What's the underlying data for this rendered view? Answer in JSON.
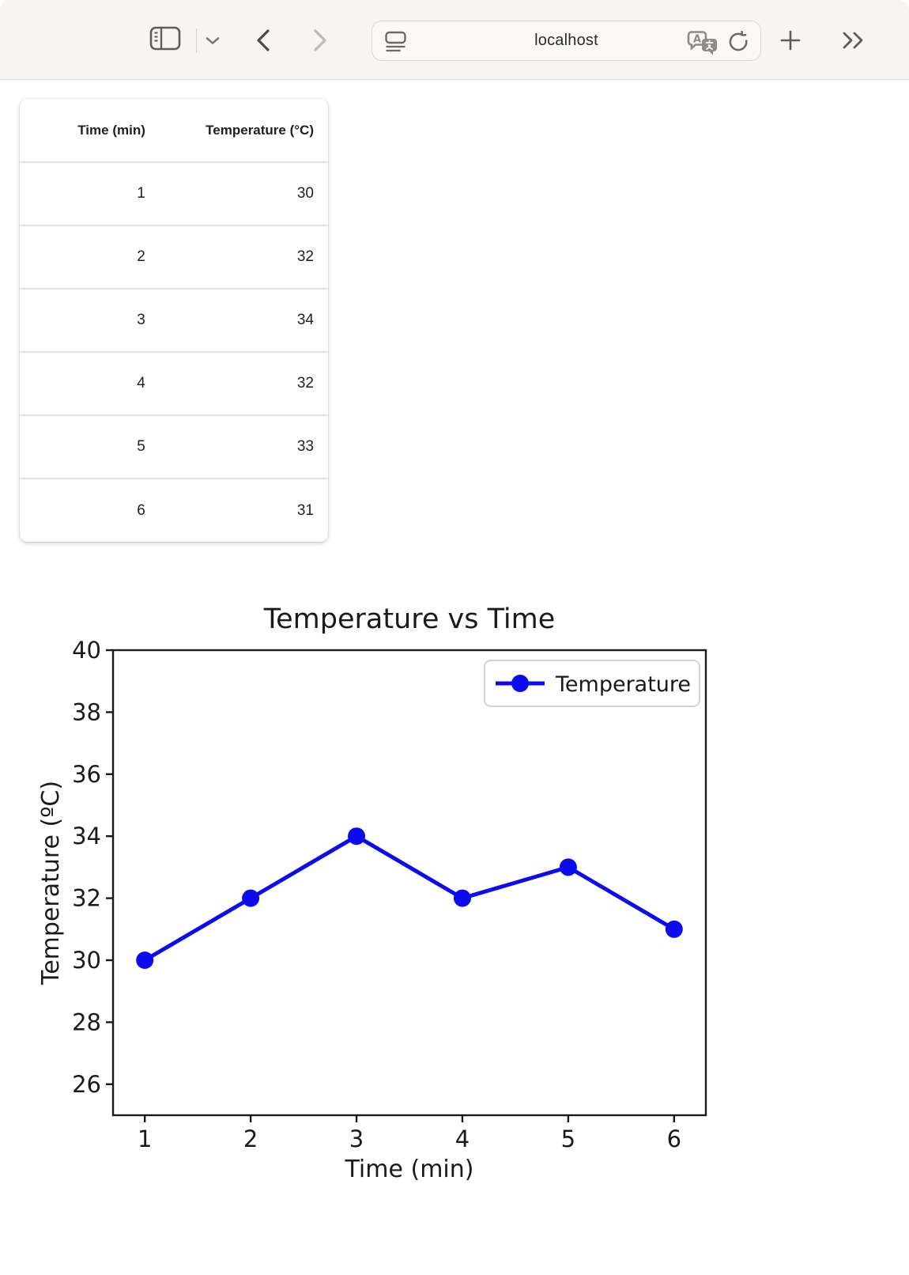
{
  "browser": {
    "url": "localhost",
    "window_buttons": {
      "close_color": "#ED6A5E",
      "minimize_color": "#F5BF4F",
      "zoom_color": "#61C554"
    },
    "toolbar": {
      "icons": [
        "sidebar-toggle",
        "tab-group-chevron",
        "back",
        "forward",
        "page-format",
        "translate",
        "reload",
        "new-tab-plus",
        "overflow-double-chevron"
      ],
      "background_color": "#f6f5f2"
    }
  },
  "table": {
    "headers": [
      "Time (min)",
      "Temperature (°C)"
    ],
    "rows": [
      [
        "1",
        "30"
      ],
      [
        "2",
        "32"
      ],
      [
        "3",
        "34"
      ],
      [
        "4",
        "32"
      ],
      [
        "5",
        "33"
      ],
      [
        "6",
        "31"
      ]
    ]
  },
  "chart_data": {
    "type": "line",
    "title": "Temperature vs Time",
    "xlabel": "Time (min)",
    "ylabel": "Temperature (ºC)",
    "x": [
      1,
      2,
      3,
      4,
      5,
      6
    ],
    "series": [
      {
        "name": "Temperature",
        "values": [
          30,
          32,
          34,
          32,
          33,
          31
        ],
        "color": "#0b0bee",
        "marker": "circle"
      }
    ],
    "xlim": [
      0.7,
      6.3
    ],
    "ylim": [
      25,
      40
    ],
    "xticks": [
      1,
      2,
      3,
      4,
      5,
      6
    ],
    "yticks": [
      26,
      28,
      30,
      32,
      34,
      36,
      38,
      40
    ],
    "grid": false,
    "legend": {
      "entries": [
        "Temperature"
      ],
      "position": "upper right"
    }
  }
}
